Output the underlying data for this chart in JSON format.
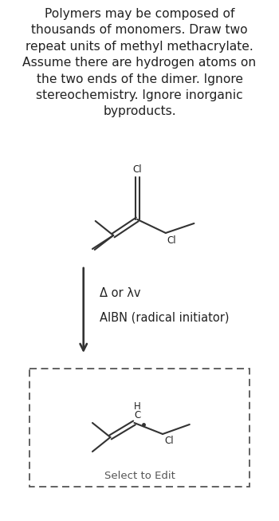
{
  "bg_color": "#ffffff",
  "text_color": "#222222",
  "line_color": "#333333",
  "title_text": "Polymers may be composed of\nthousands of monomers. Draw two\nrepeat units of methyl methacrylate.\nAssume there are hydrogen atoms on\nthe two ends of the dimer. Ignore\nstereochemistry. Ignore inorganic\nbyproducts.",
  "title_fontsize": 11.2,
  "arrow_label1": "Δ or λv",
  "arrow_label2": "AIBN (radical initiator)",
  "select_label": "Select to Edit",
  "arrow_label_fontsize": 10.5,
  "select_fontsize": 9.5,
  "mol_label_fontsize": 8.5
}
